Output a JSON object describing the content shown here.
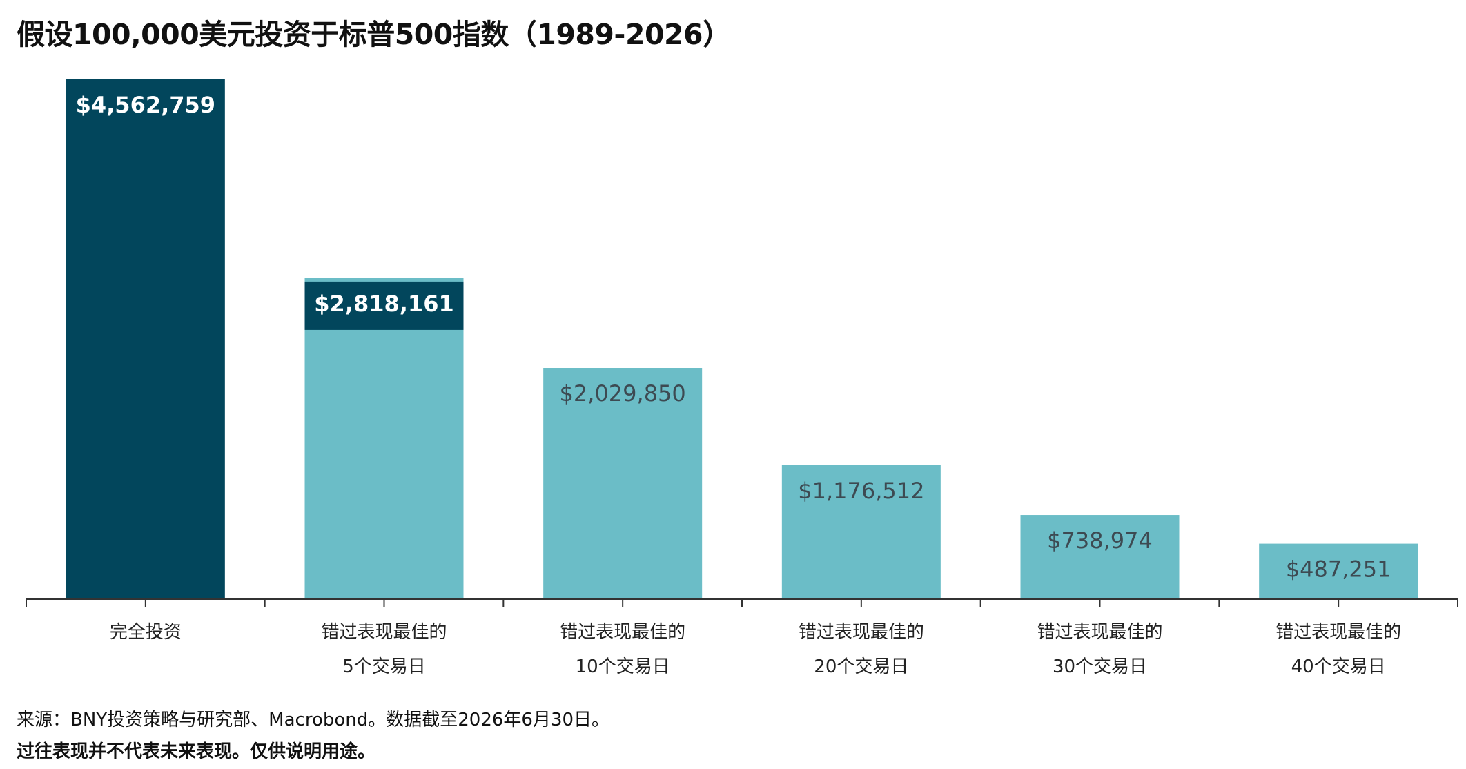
{
  "title": "假设100,000美元投资于标普500指数（1989-2026）",
  "footnotes": {
    "source": "来源：BNY投资策略与研究部、Macrobond。数据截至2026年6月30日。",
    "disclaimer": "过往表现并不代表未来表现。仅供说明用途。"
  },
  "colors": {
    "dark": "#02465c",
    "light": "#6bbdc7",
    "axis": "#333333",
    "label_dark_bg": "#ffffff",
    "label_light_bg": "#3d4a52"
  },
  "chart_data": {
    "type": "bar",
    "title": "假设100,000美元投资于标普500指数（1989-2026）",
    "xlabel": "",
    "ylabel": "",
    "ylim": [
      0,
      4562759
    ],
    "grid": false,
    "categories": [
      [
        "完全投资"
      ],
      [
        "错过表现最佳的",
        "5个交易日"
      ],
      [
        "错过表现最佳的",
        "10个交易日"
      ],
      [
        "错过表现最佳的",
        "20个交易日"
      ],
      [
        "错过表现最佳的",
        "30个交易日"
      ],
      [
        "错过表现最佳的",
        "40个交易日"
      ]
    ],
    "values": [
      4562759,
      2818161,
      2029850,
      1176512,
      738974,
      487251
    ],
    "value_labels": [
      "$4,562,759",
      "$2,818,161",
      "$2,029,850",
      "$1,176,512",
      "$738,974",
      "$487,251"
    ],
    "bar_colors": [
      "dark",
      "light",
      "light",
      "light",
      "light",
      "light"
    ],
    "label_styles": [
      "dark-bold",
      "dark-box-bold",
      "light",
      "light",
      "light",
      "light"
    ]
  }
}
